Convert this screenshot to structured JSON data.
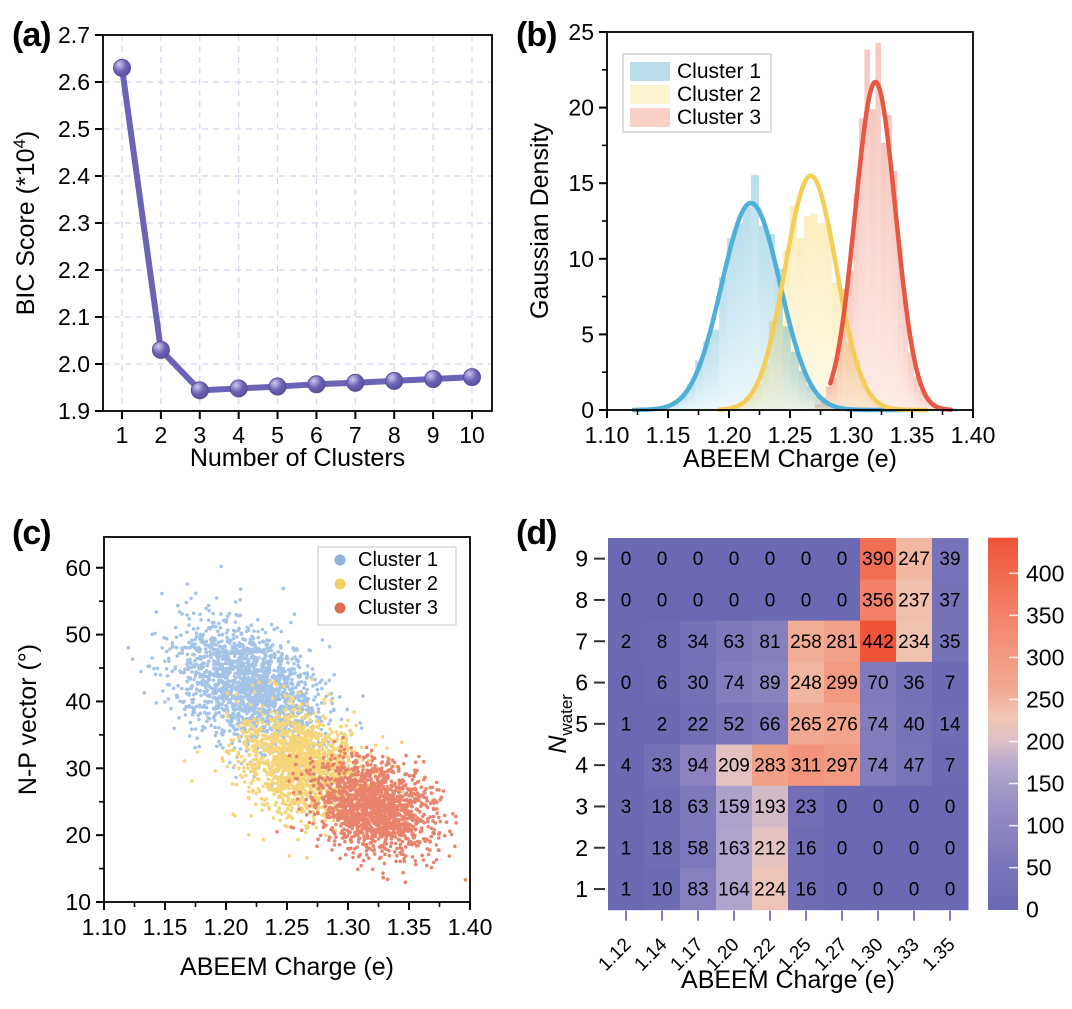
{
  "panels": {
    "a": "(a)",
    "b": "(b)",
    "c": "(c)",
    "d": "(d)"
  },
  "chart_data": [
    {
      "panel": "a",
      "type": "line",
      "xlabel": "Number of Clusters",
      "ylabel": "BIC Score (*10⁴)",
      "ylabel_parts": {
        "base": "BIC Score (*10",
        "sup": "4",
        "close": ")"
      },
      "x": [
        1,
        2,
        3,
        4,
        5,
        6,
        7,
        8,
        9,
        10
      ],
      "y": [
        2.63,
        2.03,
        1.944,
        1.948,
        1.952,
        1.957,
        1.96,
        1.964,
        1.968,
        1.972
      ],
      "xlim": [
        0.5,
        10.5
      ],
      "ylim": [
        1.9,
        2.7
      ],
      "xticks": [
        "1",
        "2",
        "3",
        "4",
        "5",
        "6",
        "7",
        "8",
        "9",
        "10"
      ],
      "yticks": [
        "1.9",
        "2.0",
        "2.1",
        "2.2",
        "2.3",
        "2.4",
        "2.5",
        "2.6",
        "2.7"
      ],
      "grid": true,
      "grid_color": "#d8d4ee",
      "line_color": "#6a63b6",
      "marker_edge": "#55509c",
      "marker_highlight": "#cdc8ec"
    },
    {
      "panel": "b",
      "type": "histogram_kde",
      "xlabel": "ABEEM Charge (e)",
      "ylabel": "Gaussian Density",
      "xlim": [
        1.1,
        1.4
      ],
      "ylim": [
        0,
        25
      ],
      "xticks": [
        "1.10",
        "1.15",
        "1.20",
        "1.25",
        "1.30",
        "1.35",
        "1.40"
      ],
      "yticks": [
        "0",
        "5",
        "10",
        "15",
        "20",
        "25"
      ],
      "legend": [
        "Cluster 1",
        "Cluster 2",
        "Cluster 3"
      ],
      "legend_patch_colors": [
        "#b9dce9",
        "#fcf3cf",
        "#f8d0c8"
      ],
      "clusters": [
        {
          "name": "Cluster 1",
          "mean": 1.218,
          "sigma": 0.024,
          "peak": 13.7,
          "curve_range": [
            1.122,
            1.347
          ],
          "line_color": "#4fafd7",
          "bar_top": "#7fc3dd",
          "bar_bottom": "#dcf0f6",
          "seed": 11
        },
        {
          "name": "Cluster 2",
          "mean": 1.267,
          "sigma": 0.021,
          "peak": 15.5,
          "curve_range": [
            1.192,
            1.362
          ],
          "line_color": "#f5cd58",
          "bar_top": "#f7e089",
          "bar_bottom": "#fdf6d8",
          "seed": 22
        },
        {
          "name": "Cluster 3",
          "mean": 1.32,
          "sigma": 0.0165,
          "peak": 21.7,
          "curve_range": [
            1.283,
            1.382
          ],
          "line_color": "#e65843",
          "bar_top": "#f0998a",
          "bar_bottom": "#fbdcd4",
          "seed": 33
        }
      ]
    },
    {
      "panel": "c",
      "type": "scatter",
      "xlabel": "ABEEM Charge (e)",
      "ylabel": "N-P vector (°)",
      "xlim": [
        1.1,
        1.4
      ],
      "ylim": [
        10,
        64.6
      ],
      "xticks": [
        "1.10",
        "1.15",
        "1.20",
        "1.25",
        "1.30",
        "1.35",
        "1.40"
      ],
      "yticks": [
        "10",
        "20",
        "30",
        "40",
        "50",
        "60"
      ],
      "legend": [
        "Cluster 1",
        "Cluster 2",
        "Cluster 3"
      ],
      "legend_dot_colors": [
        "#8fb3dd",
        "#f2cd5f",
        "#e26a55"
      ],
      "clusters": [
        {
          "name": "Cluster 1",
          "color": "#a5c3e6",
          "n": 1750,
          "mean": [
            1.218,
            42.3
          ],
          "sigma": [
            0.0285,
            4.7
          ],
          "rho": -0.35,
          "seed": 101,
          "extra_points": [
            [
              1.196,
              60.2
            ],
            [
              1.212,
              56.8
            ],
            [
              1.247,
              56.9
            ],
            [
              1.133,
              41.3
            ],
            [
              1.162,
              53.4
            ],
            [
              1.285,
              48.2
            ]
          ]
        },
        {
          "name": "Cluster 2",
          "color": "#f5d579",
          "n": 1450,
          "mean": [
            1.262,
            30.2
          ],
          "sigma": [
            0.026,
            4.1
          ],
          "rho": -0.3,
          "seed": 102,
          "extra_points": [
            [
              1.344,
              33.9
            ],
            [
              1.172,
              28.1
            ],
            [
              1.305,
              38.4
            ],
            [
              1.252,
              16.9
            ]
          ]
        },
        {
          "name": "Cluster 3",
          "color": "#e8836c",
          "n": 1550,
          "mean": [
            1.322,
            24.2
          ],
          "sigma": [
            0.0235,
            3.5
          ],
          "rho": -0.25,
          "seed": 103,
          "extra_points": [
            [
              1.386,
              23.2
            ],
            [
              1.308,
              14.9
            ],
            [
              1.362,
              31.0
            ],
            [
              1.296,
              34.6
            ]
          ]
        }
      ]
    },
    {
      "panel": "d",
      "type": "heatmap",
      "xlabel": "ABEEM Charge (e)",
      "ylabel_main": "N",
      "ylabel_sub": "water",
      "col_labels": [
        "1.12",
        "1.14",
        "1.17",
        "1.20",
        "1.22",
        "1.25",
        "1.27",
        "1.30",
        "1.33",
        "1.35"
      ],
      "row_labels": [
        "9",
        "8",
        "7",
        "6",
        "5",
        "4",
        "3",
        "2",
        "1"
      ],
      "values": [
        [
          0,
          0,
          0,
          0,
          0,
          0,
          0,
          390,
          247,
          39
        ],
        [
          0,
          0,
          0,
          0,
          0,
          0,
          0,
          356,
          237,
          37
        ],
        [
          2,
          8,
          34,
          63,
          81,
          258,
          281,
          442,
          234,
          35
        ],
        [
          0,
          6,
          30,
          74,
          89,
          248,
          299,
          70,
          36,
          7
        ],
        [
          1,
          2,
          22,
          52,
          66,
          265,
          276,
          74,
          40,
          14
        ],
        [
          4,
          33,
          94,
          209,
          283,
          311,
          297,
          74,
          47,
          7
        ],
        [
          3,
          18,
          63,
          159,
          193,
          23,
          0,
          0,
          0,
          0
        ],
        [
          1,
          18,
          58,
          163,
          212,
          16,
          0,
          0,
          0,
          0
        ],
        [
          1,
          10,
          83,
          164,
          224,
          16,
          0,
          0,
          0,
          0
        ]
      ],
      "vmin": 0,
      "vmax": 442,
      "colorbar_ticks": [
        "0",
        "50",
        "100",
        "150",
        "200",
        "250",
        "300",
        "350",
        "400"
      ],
      "colormap_stops": [
        [
          0,
          "#6b69b3"
        ],
        [
          60,
          "#7d78bb"
        ],
        [
          120,
          "#948cc4"
        ],
        [
          170,
          "#b3a7cd"
        ],
        [
          200,
          "#dcc0c6"
        ],
        [
          230,
          "#f0c6b4"
        ],
        [
          260,
          "#f2ab93"
        ],
        [
          300,
          "#f29a81"
        ],
        [
          350,
          "#f3836a"
        ],
        [
          400,
          "#f26a4e"
        ],
        [
          442,
          "#ef5338"
        ]
      ],
      "cell_text_color": "#ffffff",
      "xtick_color": "#7b79c2"
    }
  ]
}
